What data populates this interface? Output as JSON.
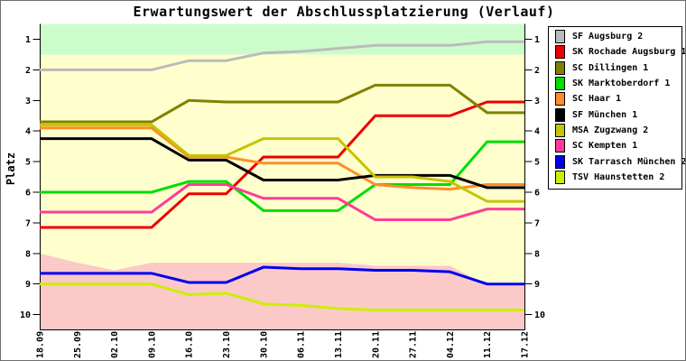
{
  "title": "Erwartungswert der Abschlussplatzierung (Verlauf)",
  "chart_data": {
    "type": "line",
    "title": "Erwartungswert der Abschlussplatzierung (Verlauf)",
    "ylabel": "Platz",
    "y_axis": {
      "min": 0.5,
      "max": 10.5,
      "inverted": true,
      "ticks": [
        1,
        2,
        3,
        4,
        5,
        6,
        7,
        8,
        9,
        10
      ],
      "tick_side": "both"
    },
    "x_tick_labels": [
      "18.09",
      "25.09",
      "02.10",
      "09.10",
      "16.10",
      "23.10",
      "30.10",
      "06.11",
      "13.11",
      "20.11",
      "27.11",
      "04.12",
      "11.12",
      "17.12"
    ],
    "grid": false,
    "legend_position": "right",
    "bands": {
      "promotion_zone": {
        "color": "#ccfccc",
        "from": 0.5,
        "to": 1.5
      },
      "neutral_zone": {
        "color": "#ffffce",
        "from": 1.5,
        "to": 10.5
      },
      "relegation_zone": {
        "color": "#fcc9c9",
        "top_by_point": [
          8.0,
          8.3,
          8.55,
          8.3,
          8.3,
          8.3,
          8.3,
          8.3,
          8.3,
          8.4,
          8.4,
          8.4,
          9.05,
          9.05
        ],
        "to": 10.5
      }
    },
    "series": [
      {
        "name": "SF Augsburg 2",
        "color": "#bbbbbb",
        "values": [
          2.0,
          2.0,
          2.0,
          2.0,
          1.7,
          1.7,
          1.45,
          1.4,
          1.3,
          1.2,
          1.2,
          1.2,
          1.08,
          1.08
        ]
      },
      {
        "name": "SK Rochade Augsburg 1",
        "color": "#ee0000",
        "values": [
          7.15,
          7.15,
          7.15,
          7.15,
          6.05,
          6.05,
          4.85,
          4.85,
          4.85,
          3.5,
          3.5,
          3.5,
          3.05,
          3.05
        ]
      },
      {
        "name": "SC Dillingen 1",
        "color": "#808000",
        "values": [
          3.7,
          3.7,
          3.7,
          3.7,
          3.0,
          3.05,
          3.05,
          3.05,
          3.05,
          2.5,
          2.5,
          2.5,
          3.4,
          3.4
        ]
      },
      {
        "name": "SK Marktoberdorf 1",
        "color": "#00dd00",
        "values": [
          6.0,
          6.0,
          6.0,
          6.0,
          5.65,
          5.65,
          6.6,
          6.6,
          6.6,
          5.75,
          5.75,
          5.75,
          4.35,
          4.35
        ]
      },
      {
        "name": "SC Haar 1",
        "color": "#ff8c28",
        "values": [
          3.9,
          3.9,
          3.9,
          3.9,
          4.85,
          4.85,
          5.05,
          5.05,
          5.05,
          5.75,
          5.85,
          5.9,
          5.75,
          5.75
        ]
      },
      {
        "name": "SF München 1",
        "color": "#000000",
        "values": [
          4.25,
          4.25,
          4.25,
          4.25,
          4.95,
          4.95,
          5.6,
          5.6,
          5.6,
          5.45,
          5.45,
          5.45,
          5.85,
          5.85
        ]
      },
      {
        "name": "MSA Zugzwang 2",
        "color": "#c4c400",
        "values": [
          3.8,
          3.8,
          3.8,
          3.8,
          4.8,
          4.8,
          4.25,
          4.25,
          4.25,
          5.5,
          5.5,
          5.65,
          6.3,
          6.3
        ]
      },
      {
        "name": "SC Kempten 1",
        "color": "#ff3c96",
        "values": [
          6.65,
          6.65,
          6.65,
          6.65,
          5.75,
          5.75,
          6.2,
          6.2,
          6.2,
          6.9,
          6.9,
          6.9,
          6.55,
          6.55
        ]
      },
      {
        "name": "SK Tarrasch München 2",
        "color": "#0000ee",
        "values": [
          8.65,
          8.65,
          8.65,
          8.65,
          8.95,
          8.95,
          8.45,
          8.5,
          8.5,
          8.55,
          8.55,
          8.6,
          9.0,
          9.0
        ]
      },
      {
        "name": "TSV Haunstetten 2",
        "color": "#cdee00",
        "values": [
          9.0,
          9.0,
          9.0,
          9.0,
          9.35,
          9.3,
          9.65,
          9.7,
          9.8,
          9.85,
          9.85,
          9.85,
          9.85,
          9.85
        ]
      }
    ]
  }
}
